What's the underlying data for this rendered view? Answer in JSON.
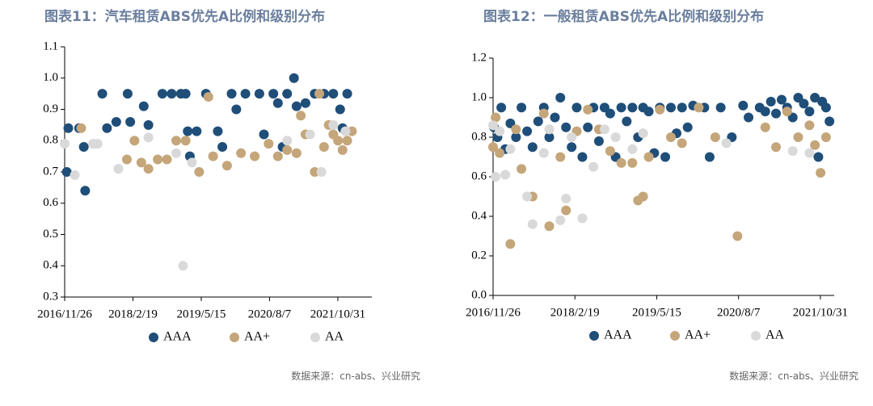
{
  "chart_data": [
    {
      "type": "scatter",
      "title": "图表11：汽车租赁ABS优先A比例和级别分布",
      "source": "数据来源：cn-abs、兴业研究",
      "xlim": [
        "2016/11/26",
        "2022/6/12"
      ],
      "xticks": [
        "2016/11/26",
        "2018/2/19",
        "2019/5/15",
        "2020/8/7",
        "2021/10/31"
      ],
      "ylim": [
        0.3,
        1.1
      ],
      "yticks": [
        0.3,
        0.4,
        0.5,
        0.6,
        0.7,
        0.8,
        0.9,
        {
          "value": 1.0,
          "label": "1.0"
        },
        1.1
      ],
      "series": [
        {
          "name": "AAA",
          "color": "#1f4e79",
          "x": [
            "2016/12/10",
            "2016/12/20",
            "2017/3/1",
            "2017/4/1",
            "2017/4/10",
            "2017/8/1",
            "2017/9/1",
            "2017/11/1",
            "2018/1/15",
            "2018/2/1",
            "2018/5/1",
            "2018/6/1",
            "2018/9/1",
            "2018/11/1",
            "2019/1/1",
            "2019/2/1",
            "2019/2/15",
            "2019/3/1",
            "2019/4/15",
            "2019/6/15",
            "2019/9/1",
            "2019/10/1",
            "2019/12/1",
            "2020/1/1",
            "2020/3/1",
            "2020/6/1",
            "2020/7/1",
            "2020/9/1",
            "2020/10/1",
            "2020/11/1",
            "2020/12/1",
            "2021/1/15",
            "2021/2/1",
            "2021/4/1",
            "2021/6/1",
            "2021/8/1",
            "2021/10/1",
            "2021/11/15",
            "2022/1/1",
            "2021/12/1"
          ],
          "values": [
            0.7,
            0.84,
            0.84,
            0.78,
            0.64,
            0.95,
            0.84,
            0.86,
            0.95,
            0.86,
            0.91,
            0.85,
            0.95,
            0.95,
            0.95,
            0.95,
            0.83,
            0.75,
            0.83,
            0.95,
            0.83,
            0.78,
            0.95,
            0.9,
            0.95,
            0.95,
            0.82,
            0.95,
            0.92,
            0.78,
            0.95,
            1.0,
            0.91,
            0.92,
            0.95,
            0.95,
            0.95,
            0.9,
            0.95,
            0.84
          ]
        },
        {
          "name": "AA+",
          "color": "#c4a67a",
          "x": [
            "2017/3/15",
            "2018/1/10",
            "2018/3/1",
            "2018/4/15",
            "2018/6/1",
            "2018/8/1",
            "2018/10/1",
            "2018/12/1",
            "2019/2/1",
            "2019/5/1",
            "2019/7/1",
            "2019/8/1",
            "2019/11/1",
            "2020/2/1",
            "2020/5/1",
            "2020/8/1",
            "2020/10/1",
            "2020/12/1",
            "2021/2/1",
            "2021/3/1",
            "2021/4/1",
            "2021/6/1",
            "2021/7/1",
            "2021/8/1",
            "2021/9/1",
            "2021/10/1",
            "2021/11/1",
            "2021/12/1",
            "2022/1/1",
            "2022/2/1"
          ],
          "values": [
            0.84,
            0.74,
            0.8,
            0.73,
            0.71,
            0.74,
            0.74,
            0.8,
            0.8,
            0.7,
            0.94,
            0.75,
            0.72,
            0.76,
            0.75,
            0.79,
            0.75,
            0.77,
            0.76,
            0.88,
            0.82,
            0.7,
            0.95,
            0.78,
            0.85,
            0.82,
            0.8,
            0.77,
            0.8,
            0.83
          ]
        },
        {
          "name": "AA",
          "color": "#d9d9d9",
          "x": [
            "2016/11/26",
            "2017/2/1",
            "2017/6/1",
            "2017/7/1",
            "2017/11/15",
            "2018/6/1",
            "2018/12/1",
            "2019/1/15",
            "2019/3/15",
            "2020/12/1",
            "2021/5/1",
            "2021/7/15",
            "2021/10/1",
            "2021/12/20"
          ],
          "values": [
            0.79,
            0.69,
            0.79,
            0.79,
            0.71,
            0.81,
            0.76,
            0.4,
            0.73,
            0.8,
            0.82,
            0.7,
            0.85,
            0.83
          ]
        }
      ]
    },
    {
      "type": "scatter",
      "title": "图表12：一般租赁ABS优先A比例和级别分布",
      "source": "数据来源：cn-abs、兴业研究",
      "xlim": [
        "2016/11/26",
        "2022/1/15"
      ],
      "xticks": [
        "2016/11/26",
        "2018/2/19",
        "2019/5/15",
        "2020/8/7",
        "2021/10/31"
      ],
      "ylim": [
        0,
        1.2
      ],
      "yticks": [
        {
          "value": 0,
          "label": "0.0"
        },
        0.2,
        0.4,
        0.6,
        0.8,
        {
          "value": 1.0,
          "label": "1.0"
        },
        1.2
      ],
      "series": [
        {
          "name": "AAA",
          "color": "#1f4e79",
          "x": [
            "2016/12/1",
            "2016/12/20",
            "2017/1/10",
            "2017/2/1",
            "2017/3/1",
            "2017/4/1",
            "2017/5/1",
            "2017/6/1",
            "2017/7/1",
            "2017/8/1",
            "2017/9/1",
            "2017/10/1",
            "2017/11/1",
            "2017/12/1",
            "2018/1/1",
            "2018/2/1",
            "2018/3/1",
            "2018/4/1",
            "2018/5/1",
            "2018/6/1",
            "2018/7/1",
            "2018/8/1",
            "2018/9/1",
            "2018/10/1",
            "2018/11/1",
            "2018/12/1",
            "2019/1/1",
            "2019/2/1",
            "2019/3/1",
            "2019/4/1",
            "2019/5/1",
            "2019/6/1",
            "2019/7/1",
            "2019/8/1",
            "2019/9/1",
            "2019/10/1",
            "2019/11/1",
            "2019/12/1",
            "2020/2/1",
            "2020/3/1",
            "2020/5/1",
            "2020/7/1",
            "2020/9/1",
            "2020/10/1",
            "2020/12/1",
            "2021/1/1",
            "2021/2/1",
            "2021/3/1",
            "2021/4/1",
            "2021/5/1",
            "2021/6/1",
            "2021/7/1",
            "2021/8/1",
            "2021/9/1",
            "2021/10/1",
            "2021/10/20",
            "2021/11/10",
            "2021/12/1",
            "2021/12/20"
          ],
          "values": [
            0.85,
            0.8,
            0.95,
            0.74,
            0.87,
            0.8,
            0.95,
            0.83,
            0.75,
            0.88,
            0.95,
            0.8,
            0.9,
            1.0,
            0.85,
            0.75,
            0.95,
            0.7,
            0.85,
            0.95,
            0.78,
            0.95,
            0.92,
            0.7,
            0.95,
            0.88,
            0.95,
            0.8,
            0.95,
            0.93,
            0.72,
            0.95,
            0.7,
            0.95,
            0.82,
            0.95,
            0.85,
            0.96,
            0.95,
            0.7,
            0.95,
            0.8,
            0.96,
            0.9,
            0.95,
            0.93,
            0.98,
            0.92,
            0.99,
            0.95,
            0.9,
            1.0,
            0.97,
            0.93,
            1.0,
            0.7,
            0.98,
            0.95,
            0.88
          ]
        },
        {
          "name": "AA+",
          "color": "#c4a67a",
          "x": [
            "2016/11/26",
            "2016/12/10",
            "2017/1/1",
            "2017/3/1",
            "2017/4/1",
            "2017/5/1",
            "2017/7/1",
            "2017/9/1",
            "2017/10/1",
            "2017/12/1",
            "2018/1/1",
            "2018/3/1",
            "2018/5/1",
            "2018/7/1",
            "2018/9/1",
            "2018/11/1",
            "2019/1/1",
            "2019/2/1",
            "2019/3/1",
            "2019/4/1",
            "2019/6/1",
            "2019/8/1",
            "2019/10/1",
            "2020/1/1",
            "2020/4/1",
            "2020/8/1",
            "2021/1/1",
            "2021/3/1",
            "2021/5/1",
            "2021/7/1",
            "2021/9/1",
            "2021/10/1",
            "2021/11/1",
            "2021/12/1"
          ],
          "values": [
            0.75,
            0.9,
            0.72,
            0.26,
            0.84,
            0.64,
            0.5,
            0.92,
            0.35,
            0.7,
            0.43,
            0.83,
            0.94,
            0.84,
            0.73,
            0.67,
            0.67,
            0.48,
            0.5,
            0.7,
            0.94,
            0.8,
            0.77,
            0.95,
            0.8,
            0.3,
            0.85,
            0.75,
            0.93,
            0.8,
            0.86,
            0.76,
            0.62,
            0.8
          ]
        },
        {
          "name": "AA",
          "color": "#d9d9d9",
          "x": [
            "2016/11/26",
            "2016/12/10",
            "2017/1/1",
            "2017/2/1",
            "2017/3/1",
            "2017/6/1",
            "2017/7/1",
            "2017/9/1",
            "2017/10/1",
            "2017/12/1",
            "2018/1/1",
            "2018/2/1",
            "2018/4/1",
            "2018/6/1",
            "2018/8/1",
            "2018/10/1",
            "2019/1/1",
            "2019/3/1",
            "2020/6/1",
            "2021/6/1",
            "2021/9/1"
          ],
          "values": [
            0.86,
            0.6,
            0.83,
            0.61,
            0.74,
            0.5,
            0.36,
            0.72,
            0.84,
            0.38,
            0.49,
            0.8,
            0.39,
            0.65,
            0.84,
            0.8,
            0.74,
            0.82,
            0.77,
            0.73,
            0.72
          ]
        }
      ]
    }
  ]
}
